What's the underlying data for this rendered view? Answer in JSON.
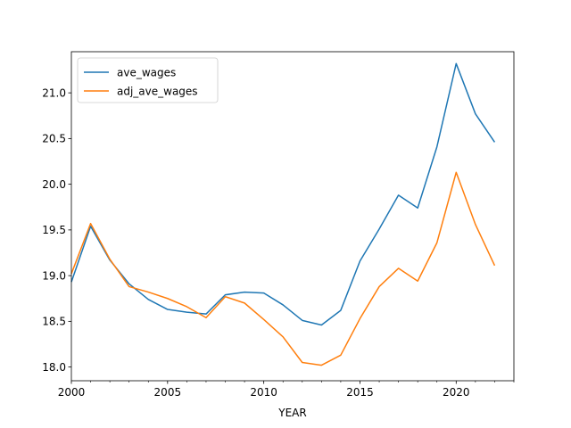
{
  "chart_data": {
    "type": "line",
    "title": "",
    "xlabel": "YEAR",
    "ylabel": "",
    "xlim": [
      2000,
      2023
    ],
    "ylim": [
      17.85,
      21.45
    ],
    "x_ticks": [
      2000,
      2005,
      2010,
      2015,
      2020
    ],
    "x_minor_ticks": [
      2001,
      2002,
      2003,
      2004,
      2006,
      2007,
      2008,
      2009,
      2011,
      2012,
      2013,
      2014,
      2016,
      2017,
      2018,
      2019,
      2021,
      2022,
      2023
    ],
    "y_ticks": [
      18.0,
      18.5,
      19.0,
      19.5,
      20.0,
      20.5,
      21.0
    ],
    "y_tick_labels": [
      "18.0",
      "18.5",
      "19.0",
      "19.5",
      "20.0",
      "20.5",
      "21.0"
    ],
    "grid": false,
    "legend": "top-left",
    "x": [
      2000,
      2001,
      2002,
      2003,
      2004,
      2005,
      2006,
      2007,
      2008,
      2009,
      2010,
      2011,
      2012,
      2013,
      2014,
      2015,
      2016,
      2017,
      2018,
      2019,
      2020,
      2021,
      2022
    ],
    "series": [
      {
        "name": "ave_wages",
        "color": "#1f77b4",
        "values": [
          18.93,
          19.54,
          19.17,
          18.91,
          18.74,
          18.63,
          18.6,
          18.58,
          18.79,
          18.82,
          18.81,
          18.68,
          18.51,
          18.46,
          18.62,
          19.16,
          19.51,
          19.88,
          19.74,
          20.41,
          21.32,
          20.77,
          20.46
        ]
      },
      {
        "name": "adj_ave_wages",
        "color": "#ff7f0e",
        "values": [
          19.02,
          19.57,
          19.18,
          18.88,
          18.82,
          18.75,
          18.66,
          18.54,
          18.77,
          18.7,
          18.52,
          18.33,
          18.05,
          18.02,
          18.13,
          18.53,
          18.88,
          19.08,
          18.94,
          19.36,
          20.13,
          19.56,
          19.11
        ]
      }
    ]
  }
}
